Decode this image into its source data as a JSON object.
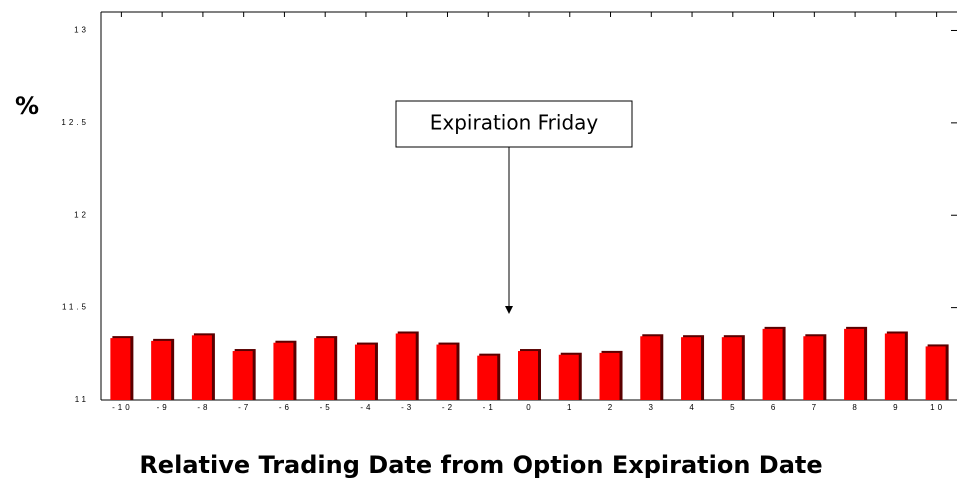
{
  "chart_data": {
    "type": "bar",
    "y_label": "%",
    "x_label": "Relative Trading Date from Option Expiration Date",
    "annotation": "Expiration Friday",
    "categories": [
      "-10",
      "-9",
      "-8",
      "-7",
      "-6",
      "-5",
      "-4",
      "-3",
      "-2",
      "-1",
      "0",
      "1",
      "2",
      "3",
      "4",
      "5",
      "6",
      "7",
      "8",
      "9",
      "10"
    ],
    "values": [
      11.335,
      11.32,
      11.35,
      11.265,
      11.31,
      11.335,
      11.3,
      11.36,
      11.3,
      11.24,
      11.265,
      11.245,
      11.255,
      11.345,
      11.34,
      11.34,
      11.385,
      11.345,
      11.385,
      11.36,
      11.29
    ],
    "color": "#ff0000",
    "ylim": [
      11,
      13.1
    ],
    "yticks": [
      11,
      11.5,
      12,
      12.5,
      13
    ],
    "grid": false
  }
}
